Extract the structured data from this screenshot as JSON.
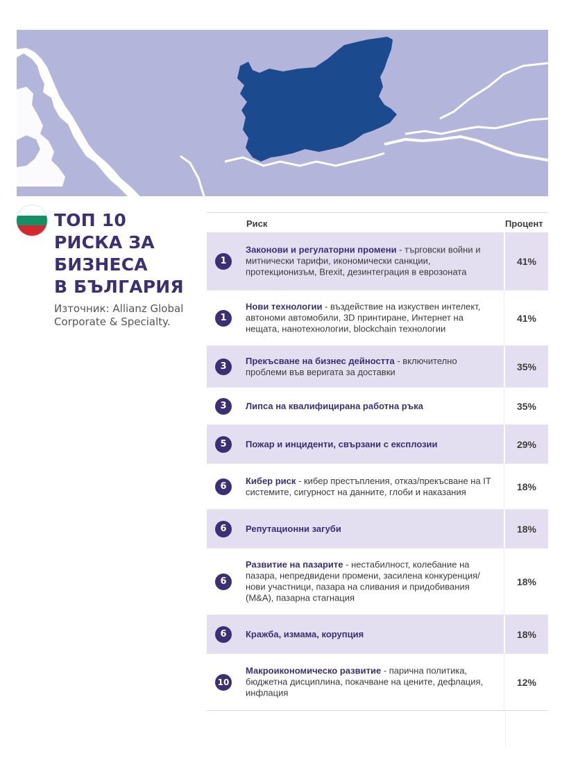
{
  "map": {
    "colors": {
      "sea": "#b3b6da",
      "land": "#ffffff",
      "highlight": "#1c4a8f"
    }
  },
  "flag": {
    "colors": [
      "#ffffff",
      "#119265",
      "#d4272f"
    ]
  },
  "header": {
    "title_lines": [
      "ТОП 10",
      "РИСКА ЗА",
      "БИЗНЕСА",
      "В БЪЛГАРИЯ"
    ],
    "source": "Източник: Allianz Global Corporate & Specialty."
  },
  "table": {
    "col_risk": "Риск",
    "col_percent": "Процент",
    "rows": [
      {
        "rank": "1",
        "name": "Законови и регулаторни промени",
        "detail": " - търговски войни и митнически тарифи, икономически санкции, протекционизъм, Brexit, дезинтеграция в еврозоната",
        "percent": "41%"
      },
      {
        "rank": "1",
        "name": "Нови технологии",
        "detail": " - въздействие на изкуствен интелект, автономи автомобили, 3D принтиране, Интернет на нещата, нанотехнологии, blockchain технологии",
        "percent": "41%"
      },
      {
        "rank": "3",
        "name": "Прекъсване на бизнес дейността",
        "detail": " - включително проблеми във веригата за доставки",
        "percent": "35%"
      },
      {
        "rank": "3",
        "name": "Липса на квалифицирана работна ръка",
        "detail": "",
        "percent": "35%"
      },
      {
        "rank": "5",
        "name": "Пожар и инциденти, свързани с експлозии",
        "detail": "",
        "percent": "29%"
      },
      {
        "rank": "6",
        "name": "Кибер риск",
        "detail": " - кибер престъпления, отказ/прекъсване на IT системите, сигурност на данните, глоби и наказания",
        "percent": "18%"
      },
      {
        "rank": "6",
        "name": "Репутационни загуби",
        "detail": "",
        "percent": "18%"
      },
      {
        "rank": "6",
        "name": "Развитие на пазарите",
        "detail": " - нестабилност, колебание на пазара, непредвидени промени, засилена конкуренция/нови участници, пазара на сливания и придобивания (M&A), пазарна стагнация",
        "percent": "18%"
      },
      {
        "rank": "6",
        "name": "Кражба, измама, корупция",
        "detail": "",
        "percent": "18%"
      },
      {
        "rank": "10",
        "name": "Макроикономическо развитие",
        "detail": " - парична политика, бюджетна дисциплина, покачване на цените, дефлация, инфлация",
        "percent": "12%"
      }
    ]
  }
}
